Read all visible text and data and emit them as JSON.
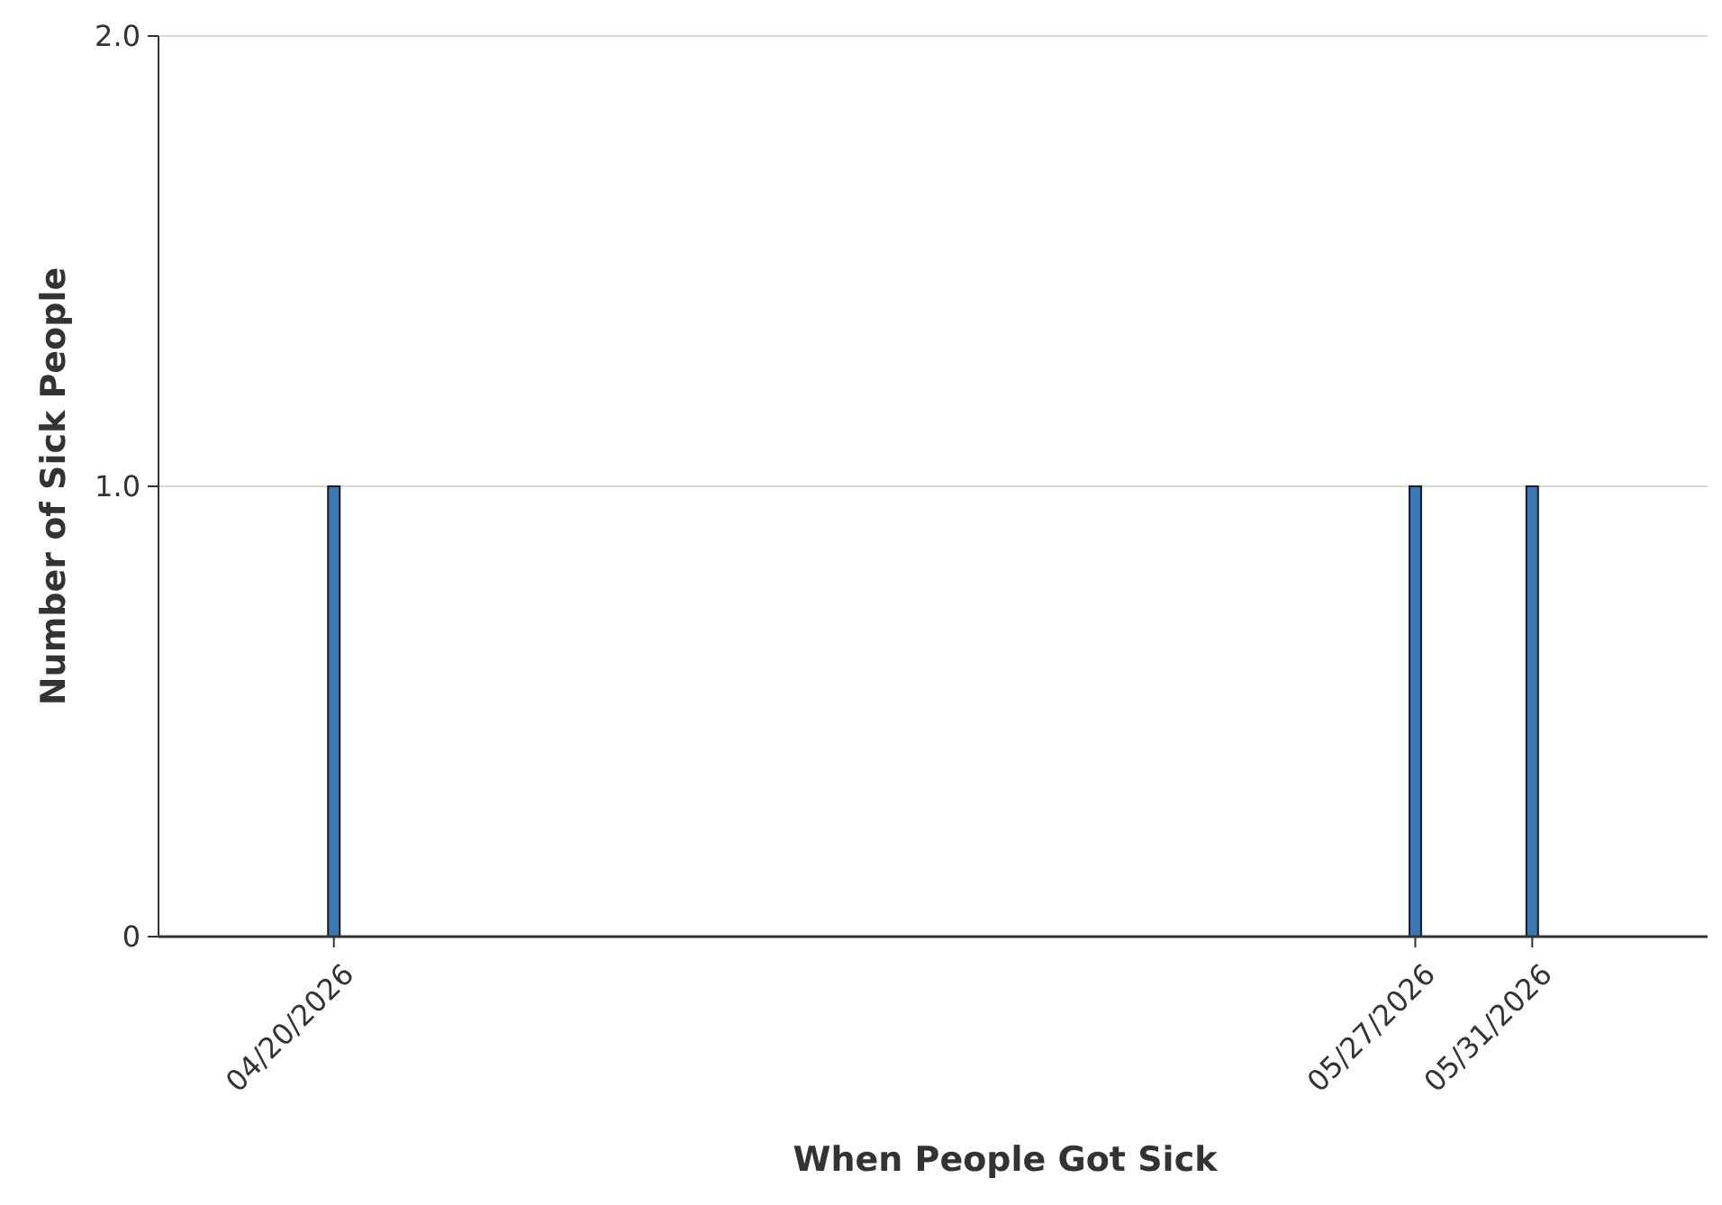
{
  "chart_data": {
    "type": "bar",
    "xlabel": "When People Got Sick",
    "ylabel": "Number of Sick People",
    "x": [
      "2026-04-20",
      "2026-05-27",
      "2026-05-31"
    ],
    "values": [
      1,
      1,
      1
    ],
    "color": "#3a78b5",
    "xlim": [
      "2026-04-14",
      "2026-06-06"
    ],
    "xticks": [
      {
        "value": "2026-04-20",
        "label": "04/20/2026"
      },
      {
        "value": "2026-05-27",
        "label": "05/27/2026"
      },
      {
        "value": "2026-05-31",
        "label": "05/31/2026"
      }
    ],
    "ylim": [
      0,
      2
    ],
    "yticks": [
      0,
      {
        "value": 1,
        "label": "1.0"
      },
      {
        "value": 2,
        "label": "2.0"
      }
    ],
    "grid": "y"
  }
}
